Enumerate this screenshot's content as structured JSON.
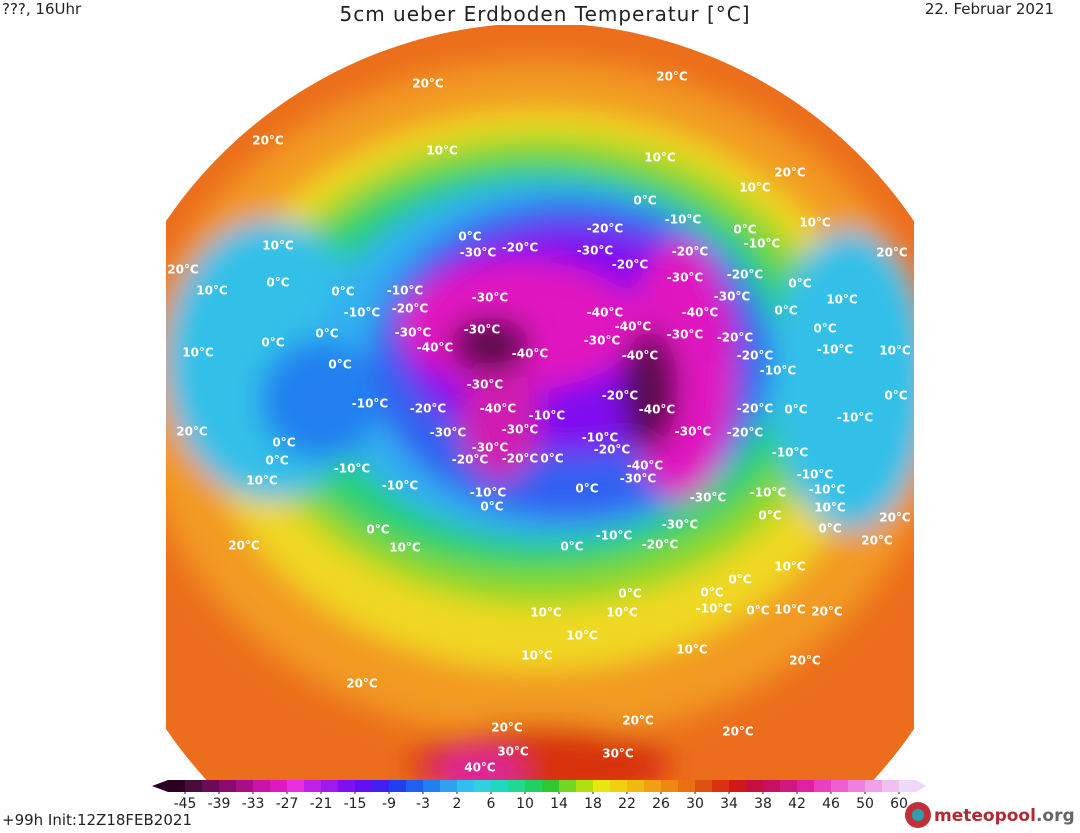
{
  "header": {
    "left": "???, 16Uhr",
    "title": "5cm ueber Erdboden Temperatur [°C]",
    "date": "22. Februar 2021"
  },
  "colorbar": {
    "ticks": [
      -45,
      -39,
      -33,
      -27,
      -21,
      -15,
      -9,
      -3,
      2,
      6,
      10,
      14,
      18,
      22,
      26,
      30,
      34,
      38,
      42,
      46,
      50,
      60
    ],
    "colors": [
      "#2a0020",
      "#4a0a3a",
      "#6b0a55",
      "#8a0a6e",
      "#a8108a",
      "#c814a8",
      "#e018c0",
      "#e830e0",
      "#c020e8",
      "#a018f0",
      "#8010f0",
      "#6010f0",
      "#4020f0",
      "#2040f0",
      "#2060f0",
      "#2080f0",
      "#30a0f0",
      "#30c0f0",
      "#30d0e0",
      "#20d8c0",
      "#20d890",
      "#20d060",
      "#30c830",
      "#70d820",
      "#b0e010",
      "#e8e810",
      "#f0d010",
      "#f0b810",
      "#f0a010",
      "#f08810",
      "#e87010",
      "#e05010",
      "#d83010",
      "#d01818",
      "#c81040",
      "#c81060",
      "#d01880",
      "#e020a0",
      "#e840c0",
      "#f060d0",
      "#f080e0",
      "#f0a0e8",
      "#f0c0f0",
      "#f0d8f8"
    ]
  },
  "map": {
    "labels": [
      "20°C",
      "20°C",
      "20°C",
      "10°C",
      "10°C",
      "20°C",
      "10°C",
      "0°C",
      "-10°C",
      "10°C",
      "0°C",
      "-30°C",
      "-20°C",
      "-20°C",
      "-30°C",
      "-20°C",
      "-10°C",
      "0°C",
      "20°C",
      "10°C",
      "0°C",
      "10°C",
      "-10°C",
      "0°C",
      "-20°C",
      "-10°C",
      "-30°C",
      "-20°C",
      "-30°C",
      "-20°C",
      "0°C",
      "20°C",
      "10°C",
      "-30°C",
      "-40°C",
      "-40°C",
      "0°C",
      "0°C",
      "0°C",
      "0°C",
      "10°C",
      "-30°C",
      "-40°C",
      "-30°C",
      "-30°C",
      "-40°C",
      "-30°C",
      "-20°C",
      "-40°C",
      "-40°C",
      "-20°C",
      "-10°C",
      "10°C",
      "0°C",
      "-10°C",
      "-30°C",
      "-20°C",
      "0°C",
      "-10°C",
      "-20°C",
      "-40°C",
      "-10°C",
      "-40°C",
      "-20°C",
      "0°C",
      "-10°C",
      "20°C",
      "-30°C",
      "-30°C",
      "-10°C",
      "-30°C",
      "-20°C",
      "0°C",
      "-30°C",
      "-20°C",
      "0°C",
      "-20°C",
      "-20°C",
      "0°C",
      "-40°C",
      "-10°C",
      "-10°C",
      "-30°C",
      "10°C",
      "-10°C",
      "-10°C",
      "-10°C",
      "0°C",
      "-30°C",
      "-10°C",
      "-10°C",
      "0°C",
      "10°C",
      "0°C",
      "20°C",
      "0°C",
      "0°C",
      "-30°C",
      "10°C",
      "20°C",
      "0°C",
      "-10°C",
      "-20°C",
      "20°C",
      "0°C",
      "0°C",
      "0°C",
      "10°C",
      "-10°C",
      "0°C",
      "10°C",
      "20°C",
      "10°C",
      "10°C",
      "10°C",
      "10°C",
      "10°C",
      "20°C",
      "20°C",
      "20°C",
      "20°C",
      "20°C",
      "30°C",
      "30°C",
      "40°C"
    ]
  },
  "footer": {
    "run": "+99h Init:12Z18FEB2021",
    "logo": "meteopool",
    ".org": ".org"
  }
}
